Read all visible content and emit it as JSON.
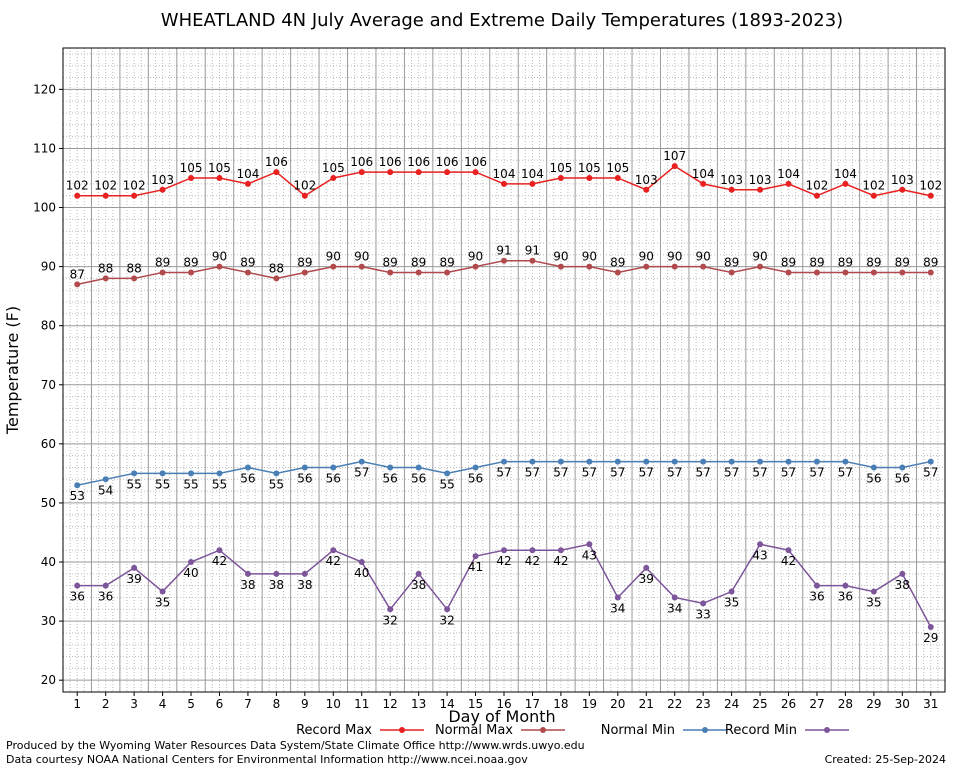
{
  "chart_data": {
    "type": "line",
    "title": "WHEATLAND 4N July Average and Extreme Daily Temperatures (1893-2023)",
    "xlabel": "Day of Month",
    "ylabel": "Temperature (F)",
    "x": [
      1,
      2,
      3,
      4,
      5,
      6,
      7,
      8,
      9,
      10,
      11,
      12,
      13,
      14,
      15,
      16,
      17,
      18,
      19,
      20,
      21,
      22,
      23,
      24,
      25,
      26,
      27,
      28,
      29,
      30,
      31
    ],
    "x_tick_labels": [
      "1",
      "2",
      "3",
      "4",
      "5",
      "6",
      "7",
      "8",
      "9",
      "10",
      "11",
      "12",
      "13",
      "14",
      "15",
      "16",
      "17",
      "18",
      "19",
      "20",
      "21",
      "22",
      "23",
      "24",
      "25",
      "26",
      "27",
      "28",
      "29",
      "30",
      "31"
    ],
    "xlim": [
      0.5,
      31.5
    ],
    "ylim": [
      18,
      127
    ],
    "y_ticks": [
      20,
      30,
      40,
      50,
      60,
      70,
      80,
      90,
      100,
      110,
      120
    ],
    "y_tick_labels": [
      "20",
      "30",
      "40",
      "50",
      "60",
      "70",
      "80",
      "90",
      "100",
      "110",
      "120"
    ],
    "grid": true,
    "legend_position": "bottom",
    "series": [
      {
        "name": "Record Max",
        "color": "#e8201f",
        "label_pos": "above",
        "values": [
          102,
          102,
          102,
          103,
          105,
          105,
          104,
          106,
          102,
          105,
          106,
          106,
          106,
          106,
          106,
          104,
          104,
          105,
          105,
          105,
          103,
          107,
          104,
          103,
          103,
          104,
          102,
          104,
          102,
          103,
          102
        ]
      },
      {
        "name": "Normal Max",
        "color": "#b04a4d",
        "label_pos": "above",
        "values": [
          87,
          88,
          88,
          89,
          89,
          90,
          89,
          88,
          89,
          90,
          90,
          89,
          89,
          89,
          90,
          91,
          91,
          90,
          90,
          89,
          90,
          90,
          90,
          89,
          90,
          89,
          89,
          89,
          89,
          89,
          89
        ]
      },
      {
        "name": "Normal Min",
        "color": "#4a7fb5",
        "label_pos": "below",
        "values": [
          53,
          54,
          55,
          55,
          55,
          55,
          56,
          55,
          56,
          56,
          57,
          56,
          56,
          55,
          56,
          57,
          57,
          57,
          57,
          57,
          57,
          57,
          57,
          57,
          57,
          57,
          57,
          57,
          56,
          56,
          57
        ]
      },
      {
        "name": "Record Min",
        "color": "#7d559a",
        "label_pos": "below",
        "values": [
          36,
          36,
          39,
          35,
          40,
          42,
          38,
          38,
          38,
          42,
          40,
          32,
          38,
          32,
          41,
          42,
          42,
          42,
          43,
          34,
          39,
          34,
          33,
          35,
          43,
          42,
          36,
          36,
          35,
          38,
          29
        ]
      }
    ]
  },
  "footer": {
    "produced_by": "Produced by the Wyoming Water Resources Data System/State Climate Office http://www.wrds.uwyo.edu",
    "courtesy": "Data courtesy NOAA National Centers for Environmental Information http://www.ncei.noaa.gov",
    "created": "Created: 25-Sep-2024"
  }
}
